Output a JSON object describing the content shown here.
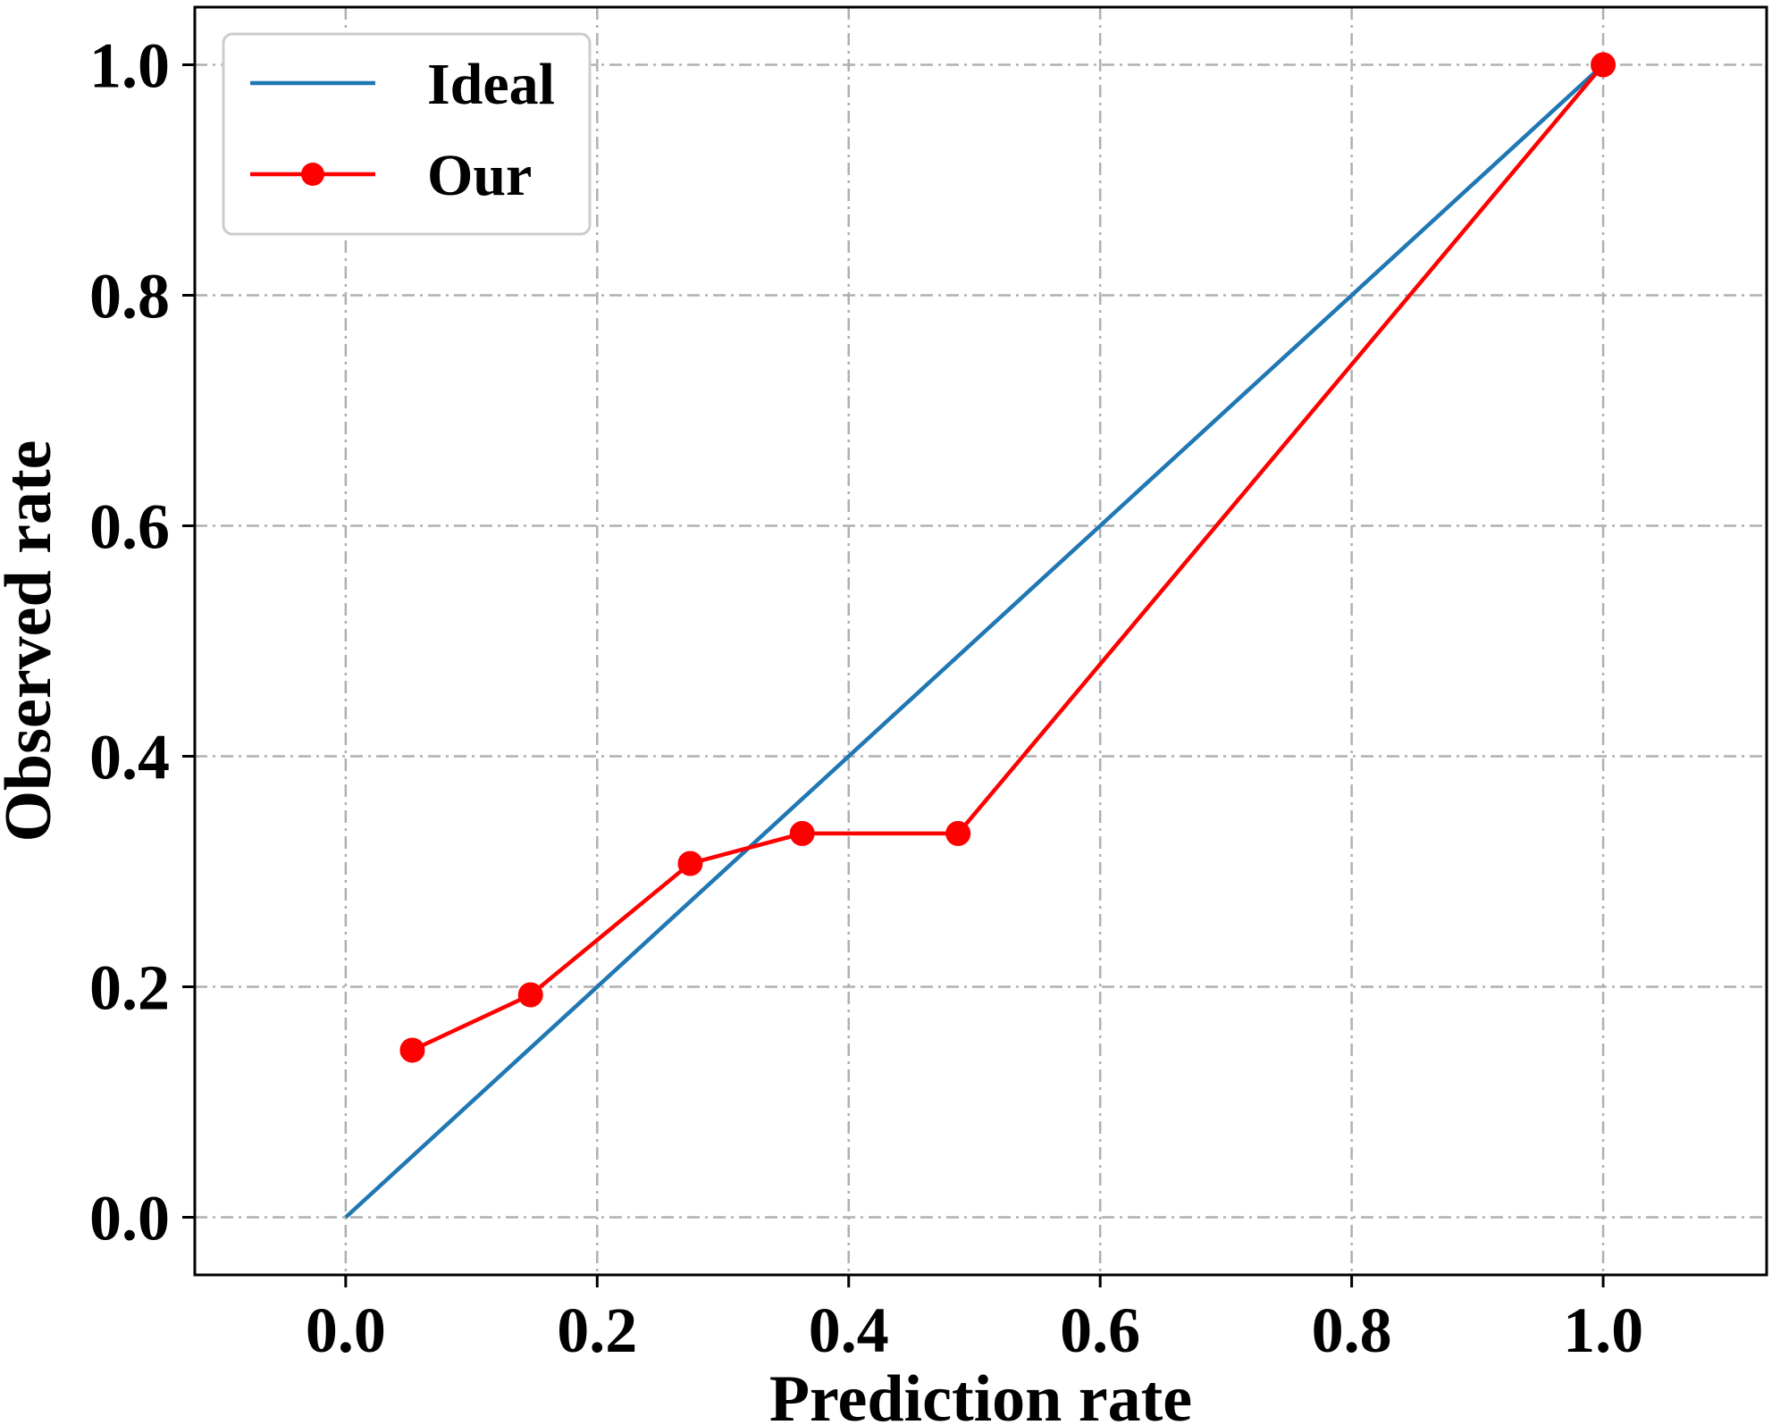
{
  "chart_data": {
    "type": "line",
    "xlabel": "Prediction rate",
    "ylabel": "Observed rate",
    "xlim": [
      -0.12,
      1.13
    ],
    "ylim": [
      -0.05,
      1.05
    ],
    "xticks": [
      0.0,
      0.2,
      0.4,
      0.6,
      0.8,
      1.0
    ],
    "yticks": [
      0.0,
      0.2,
      0.4,
      0.6,
      0.8,
      1.0
    ],
    "xtick_labels": [
      "0.0",
      "0.2",
      "0.4",
      "0.6",
      "0.8",
      "1.0"
    ],
    "ytick_labels": [
      "0.0",
      "0.2",
      "0.4",
      "0.6",
      "0.8",
      "1.0"
    ],
    "grid": true,
    "legend_position": "top-left",
    "series": [
      {
        "name": "Ideal",
        "color": "#1f77b4",
        "marker": "none",
        "x": [
          0.0,
          1.0
        ],
        "y": [
          0.0,
          1.0
        ]
      },
      {
        "name": "Our",
        "color": "#ff0000",
        "marker": "circle",
        "x": [
          0.053,
          0.147,
          0.274,
          0.363,
          0.487,
          1.0
        ],
        "y": [
          0.145,
          0.193,
          0.307,
          0.333,
          0.333,
          1.0
        ]
      }
    ]
  }
}
